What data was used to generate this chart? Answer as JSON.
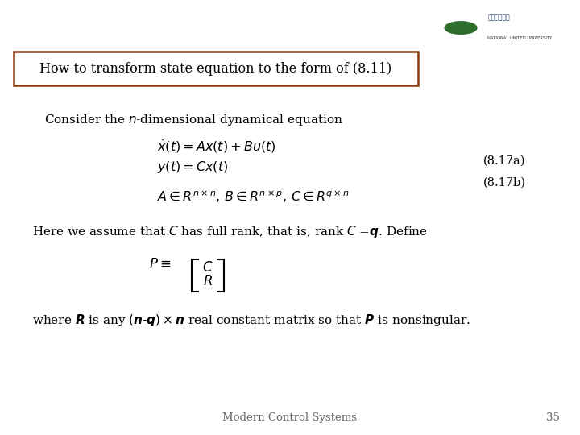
{
  "background_color": "#ffffff",
  "title_box_text": "How to transform state equation to the form of (8.11)",
  "title_box_color": "#8B3A10",
  "title_box_bg": "#ffffff",
  "footer_text": "Modern Control Systems",
  "footer_page": "35",
  "fig_width": 7.2,
  "fig_height": 5.4,
  "fig_dpi": 100
}
